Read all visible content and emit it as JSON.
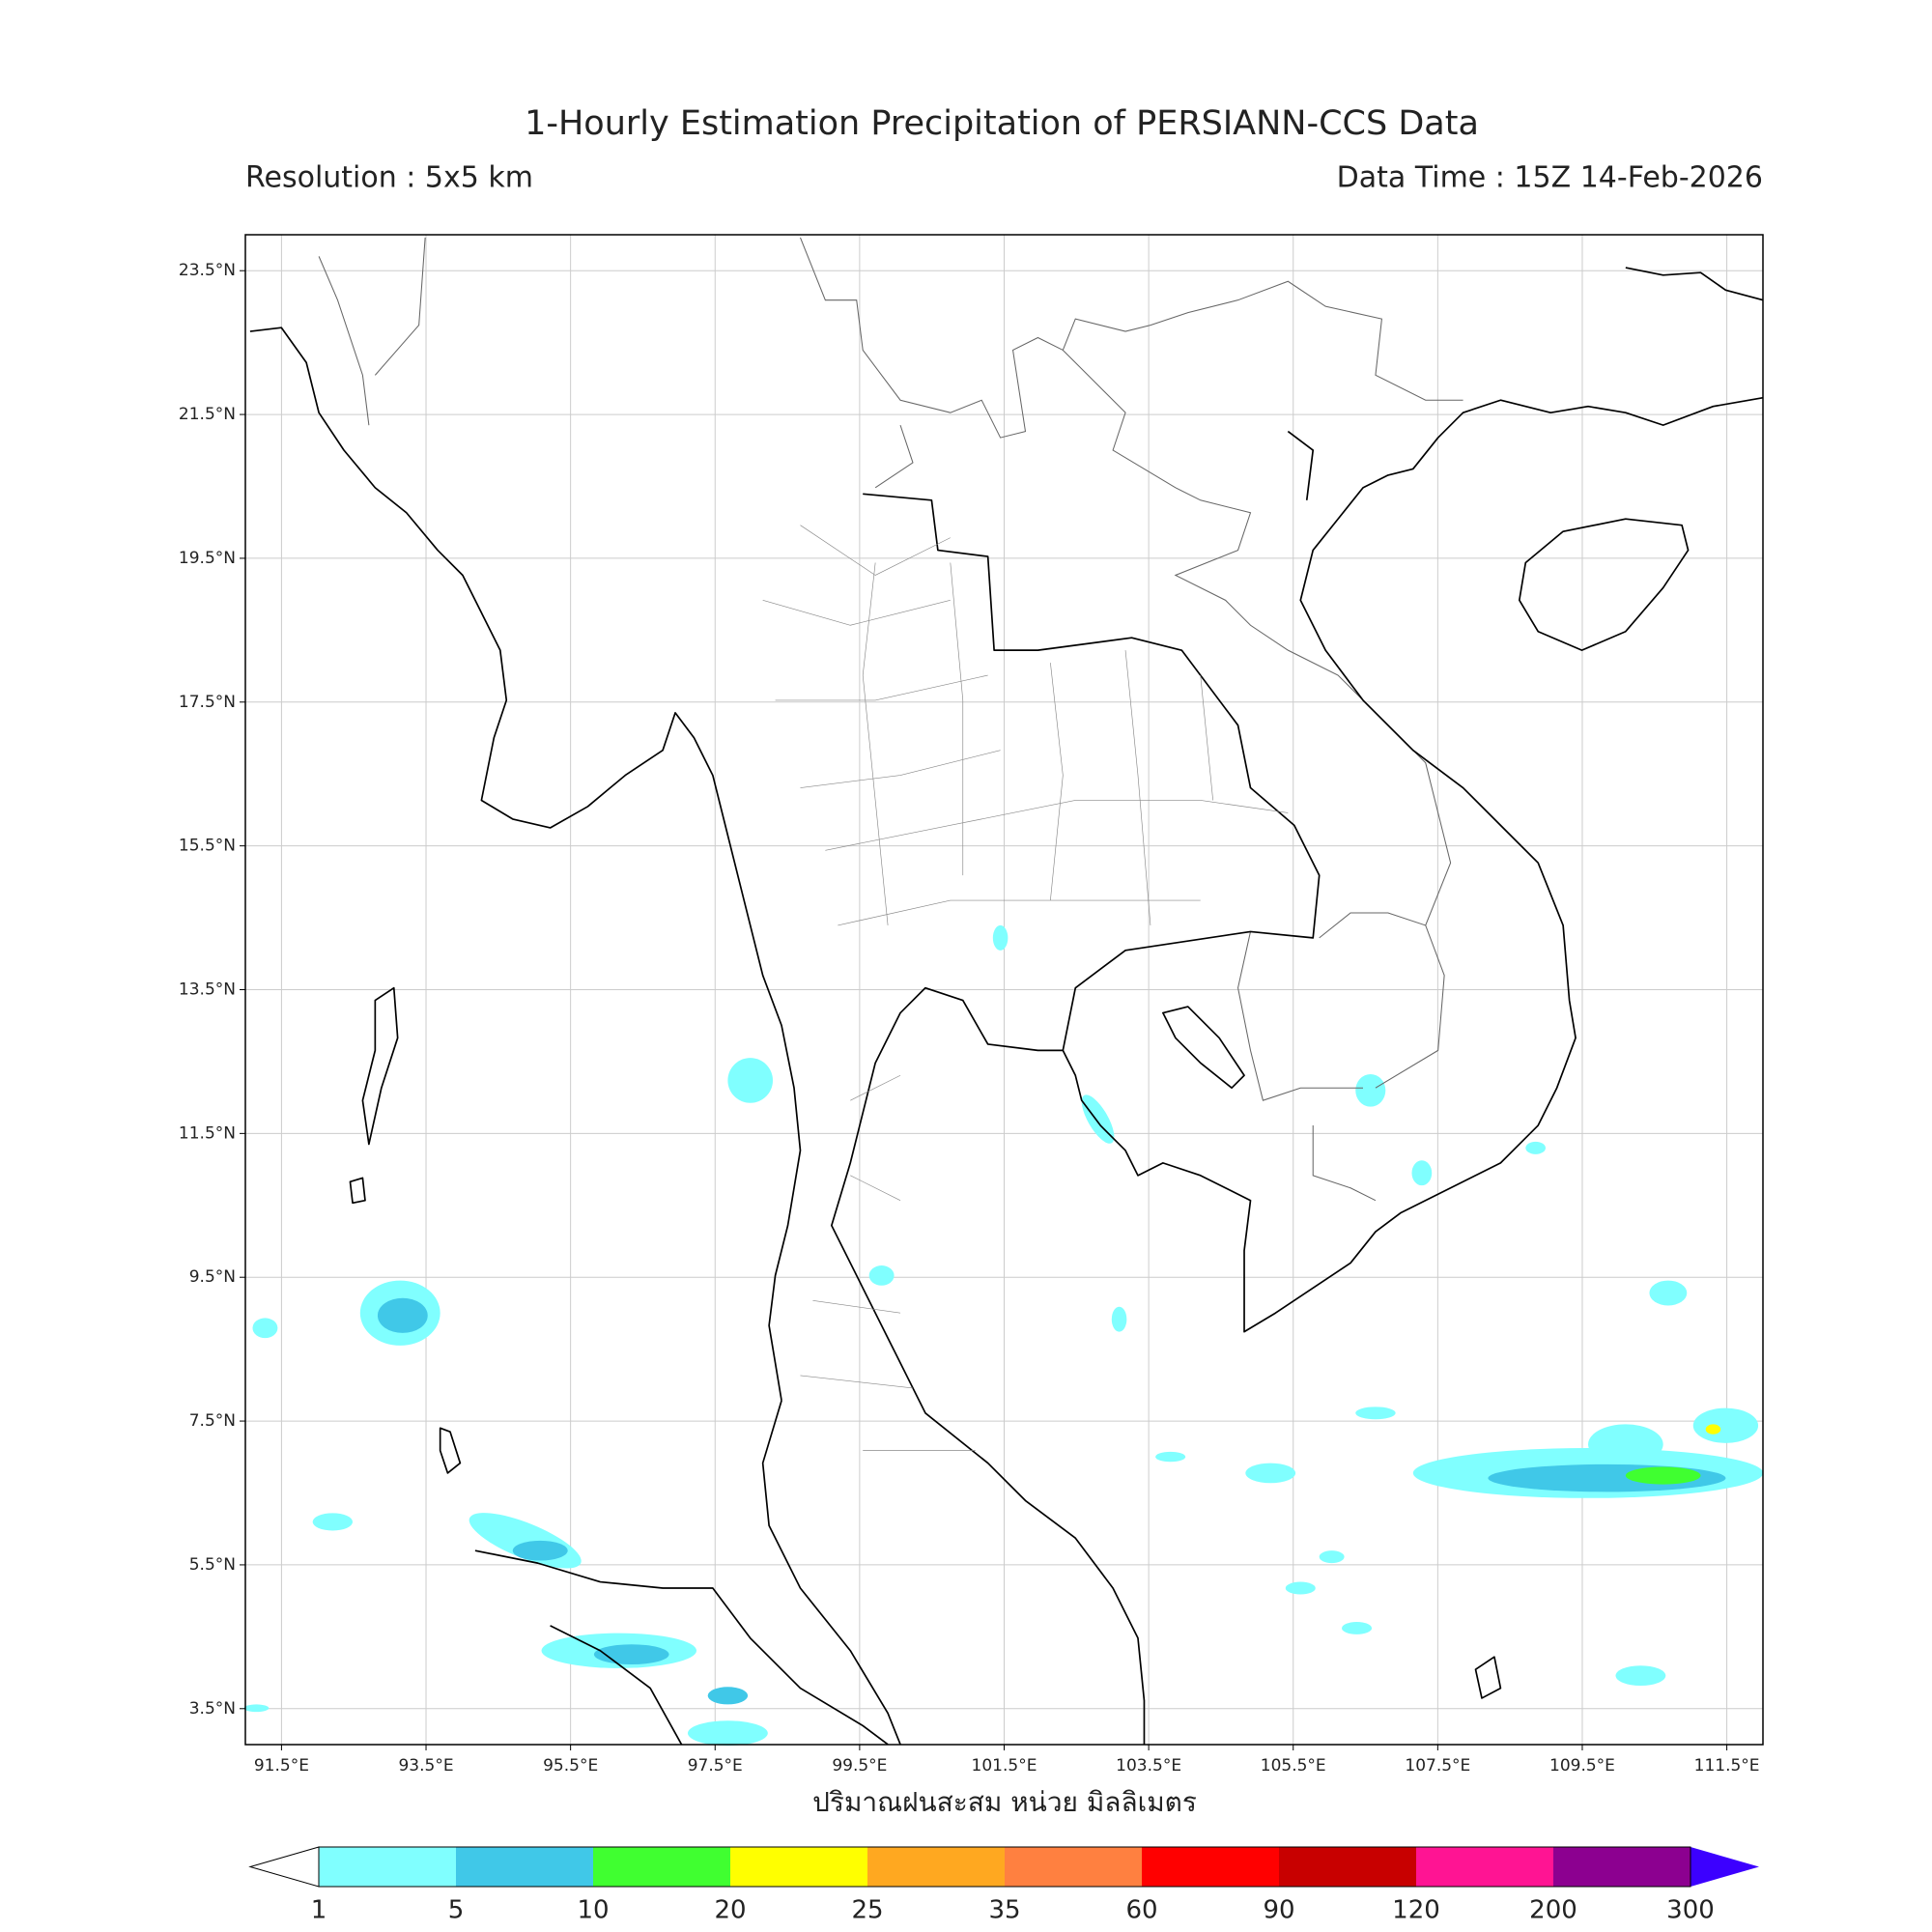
{
  "header": {
    "title": "1-Hourly Estimation Precipitation of PERSIANN-CCS Data",
    "resolution": "Resolution : 5x5 km",
    "data_time": "Data Time : 15Z 14-Feb-2026"
  },
  "map": {
    "xlim": [
      91,
      112
    ],
    "ylim": [
      3,
      24
    ],
    "lon_ticks": [
      {
        "value": 91.5,
        "label": "91.5°E"
      },
      {
        "value": 93.5,
        "label": "93.5°E"
      },
      {
        "value": 95.5,
        "label": "95.5°E"
      },
      {
        "value": 97.5,
        "label": "97.5°E"
      },
      {
        "value": 99.5,
        "label": "99.5°E"
      },
      {
        "value": 101.5,
        "label": "101.5°E"
      },
      {
        "value": 103.5,
        "label": "103.5°E"
      },
      {
        "value": 105.5,
        "label": "105.5°E"
      },
      {
        "value": 107.5,
        "label": "107.5°E"
      },
      {
        "value": 109.5,
        "label": "109.5°E"
      },
      {
        "value": 111.5,
        "label": "111.5°E"
      }
    ],
    "lat_ticks": [
      {
        "value": 23.5,
        "label": "23.5°N"
      },
      {
        "value": 21.5,
        "label": "21.5°N"
      },
      {
        "value": 19.5,
        "label": "19.5°N"
      },
      {
        "value": 17.5,
        "label": "17.5°N"
      },
      {
        "value": 15.5,
        "label": "15.5°N"
      },
      {
        "value": 13.5,
        "label": "13.5°N"
      },
      {
        "value": 11.5,
        "label": "11.5°N"
      },
      {
        "value": 9.5,
        "label": "9.5°N"
      },
      {
        "value": 7.5,
        "label": "7.5°N"
      },
      {
        "value": 5.5,
        "label": "5.5°N"
      },
      {
        "value": 3.5,
        "label": "3.5°N"
      }
    ]
  },
  "colorbar": {
    "label": "ปริมาณฝนสะสม หน่วย มิลลิเมตร",
    "levels": [
      1,
      5,
      10,
      20,
      25,
      35,
      60,
      90,
      120,
      200,
      300
    ],
    "colors": [
      "#80ffff",
      "#40c8e8",
      "#40ff30",
      "#ffff00",
      "#ffa820",
      "#ff8040",
      "#ff0000",
      "#c80000",
      "#ff1493",
      "#8c0090"
    ],
    "under_color": "#ffffff",
    "over_color": "#3c00ff"
  }
}
